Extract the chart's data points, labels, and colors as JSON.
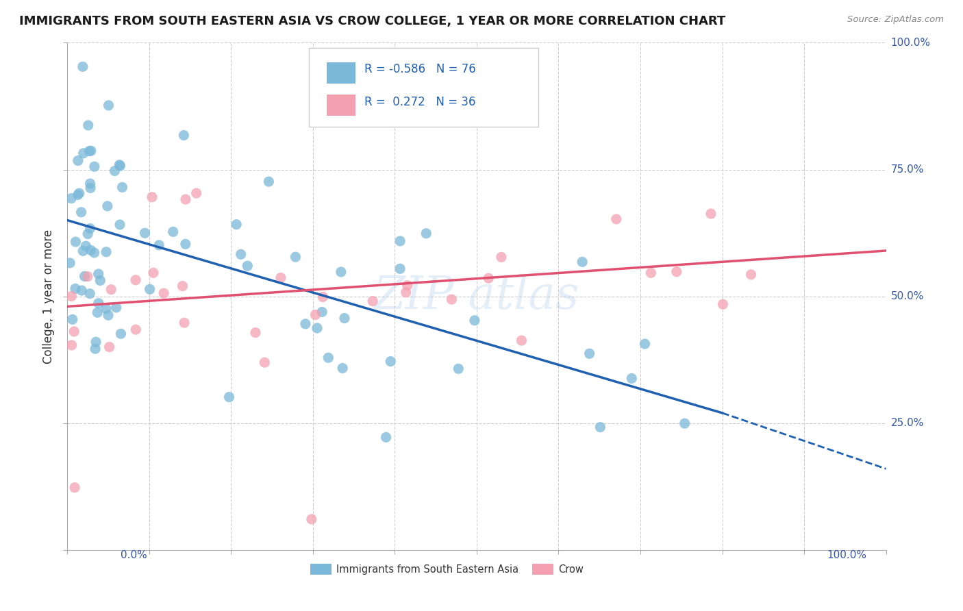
{
  "title": "IMMIGRANTS FROM SOUTH EASTERN ASIA VS CROW COLLEGE, 1 YEAR OR MORE CORRELATION CHART",
  "source_text": "Source: ZipAtlas.com",
  "ylabel": "College, 1 year or more",
  "legend_r1": "R = -0.586",
  "legend_n1": "N = 76",
  "legend_r2": "R =  0.272",
  "legend_n2": "N = 36",
  "blue_color": "#7ab8d9",
  "pink_color": "#f4a0b0",
  "blue_line_color": "#2060b0",
  "pink_line_color": "#e05070",
  "watermark_text": "ZIP atlas",
  "xlim": [
    0,
    100
  ],
  "ylim": [
    0,
    100
  ],
  "blue_line_y0": 65,
  "blue_line_y80": 27,
  "blue_dash_x_start": 80,
  "blue_dash_y_start": 27,
  "blue_dash_x_end": 100,
  "blue_dash_y_end": 16,
  "pink_line_y0": 48,
  "pink_line_y100": 59,
  "grid_color": "#cccccc",
  "y_label_color": "#3355aa",
  "x_label_color": "#3355aa",
  "title_fontsize": 13,
  "axis_tick_fontsize": 11,
  "seed": 123
}
